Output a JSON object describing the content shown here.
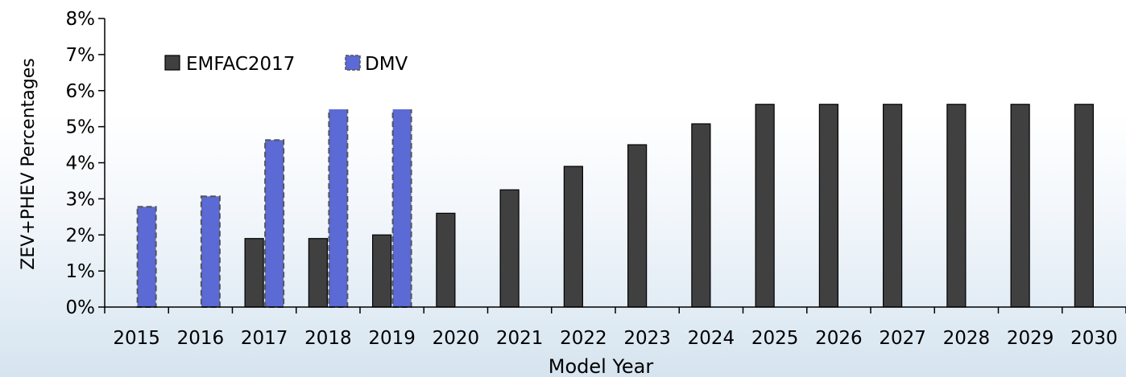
{
  "chart_data": {
    "type": "bar",
    "title": "",
    "xlabel": "Model Year",
    "ylabel": "ZEV+PHEV Percentages",
    "ylim": [
      0,
      8
    ],
    "yticks": [
      "0%",
      "1%",
      "2%",
      "3%",
      "4%",
      "5%",
      "6%",
      "7%",
      "8%"
    ],
    "categories": [
      "2015",
      "2016",
      "2017",
      "2018",
      "2019",
      "2020",
      "2021",
      "2022",
      "2023",
      "2024",
      "2025",
      "2026",
      "2027",
      "2028",
      "2029",
      "2030"
    ],
    "series": [
      {
        "name": "EMFAC2017",
        "color": "#404040",
        "values": [
          null,
          null,
          1.9,
          1.9,
          2.0,
          2.6,
          3.25,
          3.9,
          4.5,
          5.08,
          5.62,
          5.62,
          5.62,
          5.62,
          5.62,
          5.62
        ]
      },
      {
        "name": "DMV",
        "color": "#5b6ad4",
        "values": [
          2.78,
          3.07,
          4.63,
          5.75,
          5.75,
          null,
          null,
          null,
          null,
          null,
          null,
          null,
          null,
          null,
          null,
          null
        ]
      }
    ],
    "legend": "top-left",
    "grid": false
  }
}
